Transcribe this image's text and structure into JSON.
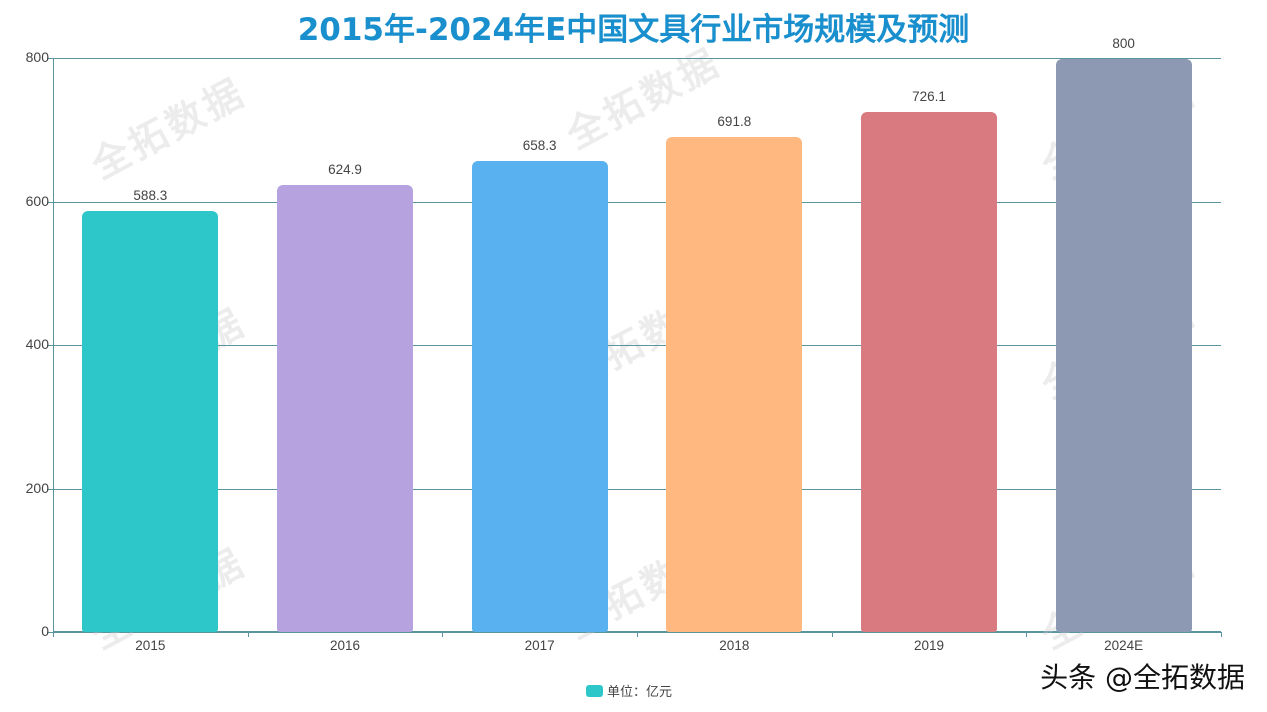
{
  "title": "2015年-2024年E中国文具行业市场规模及预测",
  "watermark_text": "全拓数据",
  "credit": "头条 @全拓数据",
  "legend": {
    "label": "单位：亿元",
    "color": "#2ec7c9"
  },
  "colors": {
    "title": "#1a8fce",
    "axis": "#5a949e",
    "bars": [
      "#2ec7c9",
      "#b6a2de",
      "#5ab1ef",
      "#ffb980",
      "#d87a80",
      "#8d98b3"
    ]
  },
  "chart_data": {
    "type": "bar",
    "title": "2015年-2024年E中国文具行业市场规模及预测",
    "categories": [
      "2015",
      "2016",
      "2017",
      "2018",
      "2019",
      "2024E"
    ],
    "values": [
      588.3,
      624.9,
      658.3,
      691.8,
      726.1,
      800
    ],
    "value_labels": [
      "588.3",
      "624.9",
      "658.3",
      "691.8",
      "726.1",
      "800"
    ],
    "xlabel": "",
    "ylabel": "",
    "unit": "亿元",
    "ylim": [
      0,
      800
    ],
    "yticks": [
      0,
      200,
      400,
      600,
      800
    ],
    "ytick_labels": [
      "0",
      "200",
      "400",
      "600",
      "800"
    ],
    "grid": true,
    "legend": {
      "entries": [
        "单位：亿元"
      ],
      "position": "bottom-center"
    }
  }
}
